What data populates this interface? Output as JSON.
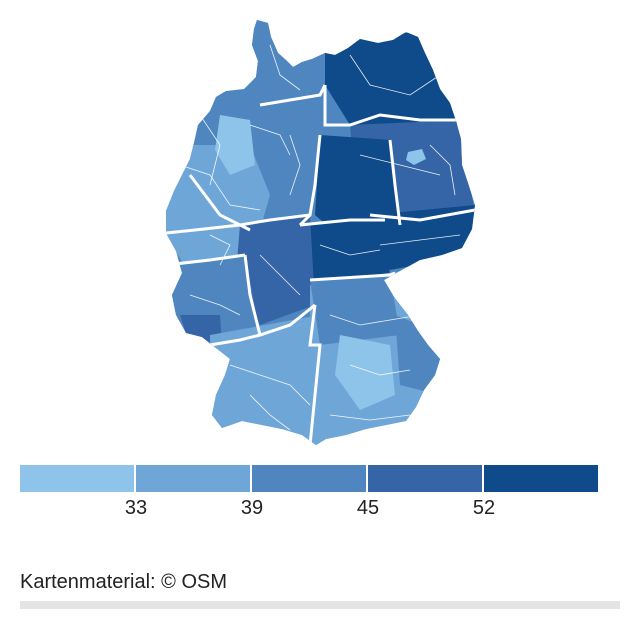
{
  "map": {
    "region": "Germany districts",
    "colors": {
      "c1": "#8ec3ea",
      "c2": "#6fa6d8",
      "c3": "#4f86c0",
      "c4": "#3565a6",
      "c5": "#0f4a8a",
      "border": "#ffffff"
    }
  },
  "legend": {
    "bins": [
      {
        "color": "#8ec3ea"
      },
      {
        "color": "#6fa6d8"
      },
      {
        "color": "#4f86c0"
      },
      {
        "color": "#3565a6"
      },
      {
        "color": "#0f4a8a"
      }
    ],
    "ticks": [
      "33",
      "39",
      "45",
      "52"
    ]
  },
  "attribution": "Kartenmaterial: © OSM"
}
